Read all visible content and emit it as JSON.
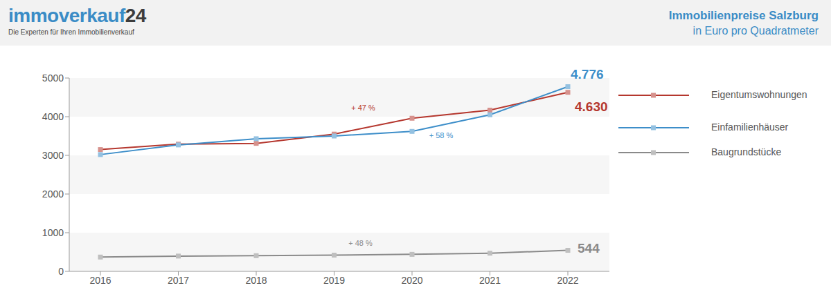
{
  "header": {
    "brand": "immoverkauf24",
    "tagline": "Die Experten für Ihren Immobilienverkauf"
  },
  "chart_data": {
    "type": "line",
    "title": "Immobilienpreise Salzburg",
    "subtitle": "in Euro pro Quadratmeter",
    "categories": [
      "2016",
      "2017",
      "2018",
      "2019",
      "2020",
      "2021",
      "2022"
    ],
    "series": [
      {
        "name": "Eigentumswohnungen",
        "color": "#b5372e",
        "marker": "square",
        "values": [
          3150,
          3290,
          3310,
          3550,
          3960,
          4170,
          4630
        ],
        "value_labels": [
          null,
          null,
          null,
          null,
          null,
          null,
          "4.630"
        ]
      },
      {
        "name": "Einfamilienhäuser",
        "color": "#3d8ec9",
        "marker": "square",
        "values": [
          3020,
          3270,
          3430,
          3500,
          3620,
          4050,
          4776
        ],
        "value_labels": [
          null,
          null,
          null,
          null,
          null,
          null,
          "4.776"
        ]
      },
      {
        "name": "Baugrundstücke",
        "color": "#8a8a8a",
        "marker": "square",
        "values": [
          370,
          395,
          405,
          420,
          440,
          470,
          544
        ],
        "value_labels": [
          null,
          null,
          null,
          null,
          null,
          null,
          "544"
        ]
      }
    ],
    "annotations": [
      {
        "text": "+ 47 %",
        "series": "Eigentumswohnungen",
        "at": "2019"
      },
      {
        "text": "+ 58 %",
        "series": "Einfamilienhäuser",
        "at": "2020"
      },
      {
        "text": "+ 48 %",
        "series": "Baugrundstücke",
        "at": "2019"
      }
    ],
    "ylim": [
      0,
      5000
    ],
    "yticks": [
      0,
      1000,
      2000,
      3000,
      4000,
      5000
    ],
    "grid": true,
    "legend": "right",
    "data_labels": true
  }
}
